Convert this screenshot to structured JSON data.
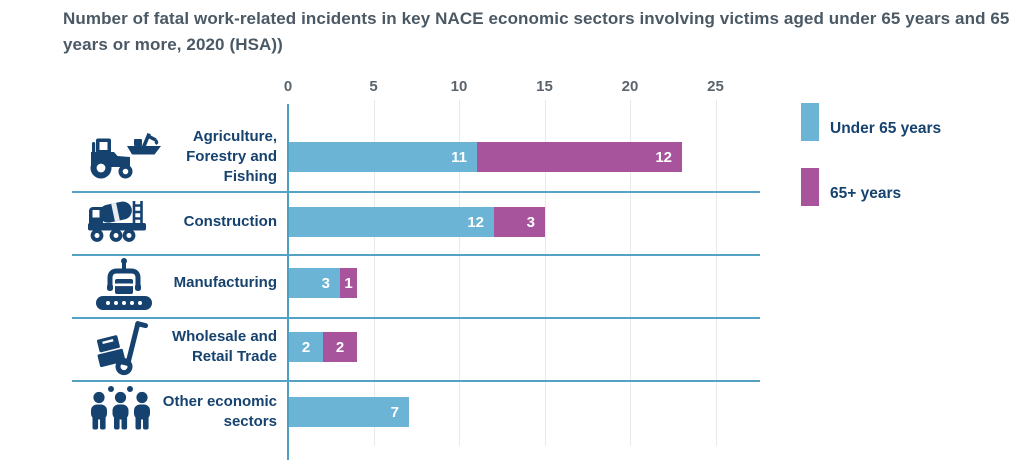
{
  "title": "Number of fatal work-related incidents in key NACE economic sectors involving victims aged under 65 years and 65 years or more, 2020 (HSA))",
  "colors": {
    "under65_blue": "#6cb4d5",
    "over65_purple": "#a8549c",
    "axis_blue": "#4d9ec2",
    "separator_blue": "#55a3c4",
    "gridline_gray": "#e9e9ec",
    "label_navy": "#16426f",
    "title_slate": "#4b5965",
    "tick_gray": "#5b646d",
    "value_text_white": "#ffffff"
  },
  "legend": {
    "items": [
      {
        "label": "Under 65 years",
        "color": "#6cb4d5"
      },
      {
        "label": "65+ years",
        "color": "#a8549c"
      }
    ]
  },
  "chart_data": {
    "type": "bar",
    "orientation": "horizontal",
    "stacked": true,
    "title": "Number of fatal work-related incidents in key NACE economic sectors involving victims aged under 65 years and 65 years or more, 2020 (HSA))",
    "categories": [
      "Agriculture, Forestry and Fishing",
      "Construction",
      "Manufacturing",
      "Wholesale and Retail Trade",
      "Other economic sectors"
    ],
    "category_icons": [
      "tractor-and-boat-icon",
      "mixer-truck-icon",
      "conveyor-belt-icon",
      "hand-truck-icon",
      "people-group-icon"
    ],
    "series": [
      {
        "name": "Under 65 years",
        "color": "#6cb4d5",
        "values": [
          11,
          12,
          3,
          2,
          7
        ]
      },
      {
        "name": "65+ years",
        "color": "#a8549c",
        "values": [
          12,
          3,
          1,
          2,
          0
        ]
      }
    ],
    "x_ticks": [
      0,
      5,
      10,
      15,
      20,
      25
    ],
    "xlim": [
      0,
      27.6
    ],
    "xlabel": "",
    "ylabel": "",
    "grid": "vertical-light",
    "legend_position": "right",
    "value_labels": "inside segment end, white bold"
  }
}
